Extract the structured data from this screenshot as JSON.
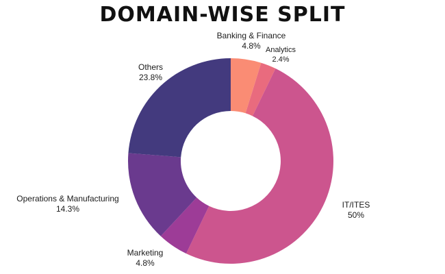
{
  "chart_data": {
    "type": "pie",
    "variant": "donut",
    "title": "DOMAIN-WISE SPLIT",
    "slices": [
      {
        "label": "Banking & Finance",
        "percent_label": "4.8%",
        "value": 4.8,
        "color": "#FA8C74"
      },
      {
        "label": "Analytics",
        "percent_label": "2.4%",
        "value": 2.4,
        "color": "#E96B7E"
      },
      {
        "label": "IT/ITES",
        "percent_label": "50%",
        "value": 50.0,
        "color": "#CC558E"
      },
      {
        "label": "Marketing",
        "percent_label": "4.8%",
        "value": 4.8,
        "color": "#9D3C97"
      },
      {
        "label": "Operations & Manufacturing",
        "percent_label": "14.3%",
        "value": 14.3,
        "color": "#6A3A8E"
      },
      {
        "label": "Others",
        "percent_label": "23.8%",
        "value": 23.8,
        "color": "#433A7E"
      }
    ],
    "legend": "none",
    "start_angle": "top, clockwise"
  }
}
